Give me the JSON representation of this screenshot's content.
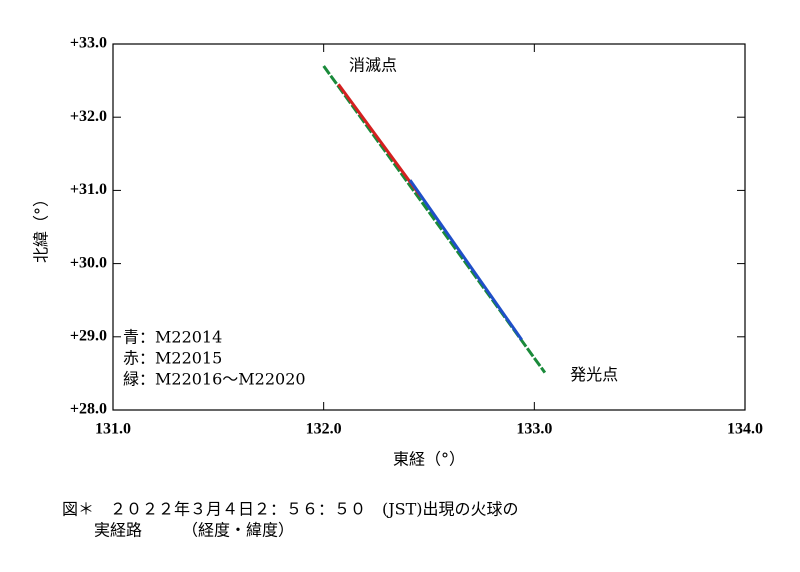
{
  "chart_data": {
    "type": "line",
    "xlabel": "東経（°）",
    "ylabel": "北緯（°）",
    "xlim": [
      131.0,
      134.0
    ],
    "xticks": [
      {
        "value": 131,
        "label": "131.0"
      },
      {
        "value": 132,
        "label": "132.0"
      },
      {
        "value": 133,
        "label": "133.0"
      },
      {
        "value": 134,
        "label": "134.0"
      }
    ],
    "ylim": [
      28.0,
      33.0
    ],
    "yticks": [
      {
        "value": 28,
        "label": "+28.0"
      },
      {
        "value": 29,
        "label": "+29.0"
      },
      {
        "value": 30,
        "label": "+30.0"
      },
      {
        "value": 31,
        "label": "+31.0"
      },
      {
        "value": 32,
        "label": "+32.0"
      },
      {
        "value": 33,
        "label": "+33.0"
      }
    ],
    "legend": "lower left",
    "series": [
      {
        "name": "緑：M22016～M22020",
        "color": "#1a8a3a",
        "x": [
          132.0,
          133.05
        ],
        "values": [
          32.7,
          28.51
        ]
      },
      {
        "name": "赤：M22015",
        "color": "#d42020",
        "x": [
          132.07,
          132.46
        ],
        "values": [
          32.45,
          30.92
        ]
      },
      {
        "name": "青：M22014",
        "color": "#1f4fc8",
        "x": [
          132.41,
          132.94
        ],
        "values": [
          31.14,
          28.96
        ]
      }
    ],
    "legend_order": [
      2,
      1,
      0
    ],
    "annotations": [
      {
        "text": "消滅点",
        "x": 132.12,
        "y": 32.7
      },
      {
        "text": "発光点",
        "x": 133.17,
        "y": 28.47
      }
    ],
    "caption": [
      "図＊　２０２２年３月４日２：５６：５０　(JST)出現の火球の",
      "　　実経路　　　（経度・緯度）"
    ]
  }
}
